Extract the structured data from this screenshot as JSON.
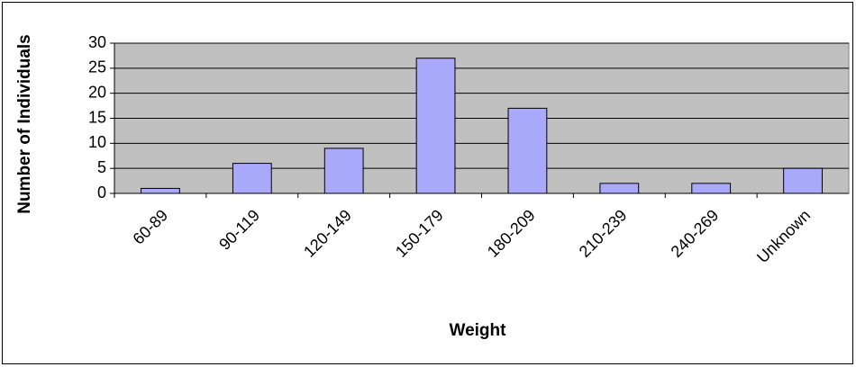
{
  "chart_data": {
    "type": "bar",
    "categories": [
      "60-89",
      "90-119",
      "120-149",
      "150-179",
      "180-209",
      "210-239",
      "240-269",
      "Unknown"
    ],
    "values": [
      1,
      6,
      9,
      27,
      17,
      2,
      2,
      5
    ],
    "color": "#a9a9fb",
    "x_label": "Weight",
    "y_label": "Number of Individuals",
    "ylim": [
      0,
      30
    ],
    "yticks": [
      0,
      5,
      10,
      15,
      20,
      25,
      30
    ],
    "grid": true
  }
}
